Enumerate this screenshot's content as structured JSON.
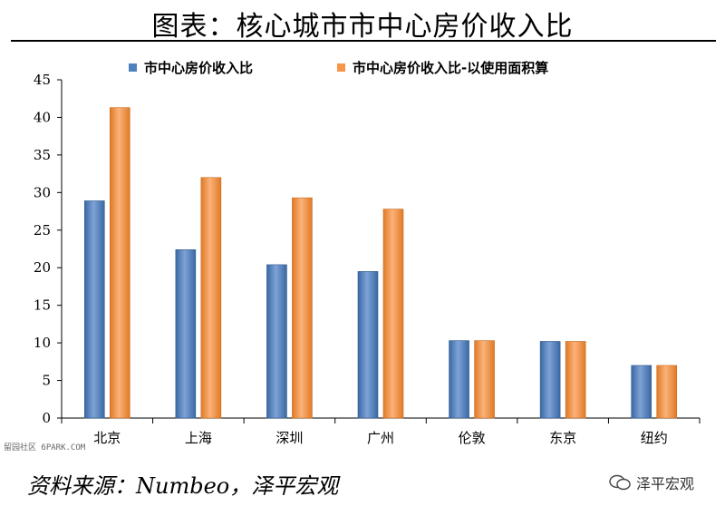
{
  "title": "图表：核心城市市中心房价收入比",
  "source": "资料来源：Numbeo，泽平宏观",
  "watermark_left": "留园社区 6PARK.COM",
  "watermark_right": "泽平宏观",
  "colors": {
    "series1": "#4f81bd",
    "series2": "#f79646"
  },
  "chart_data": {
    "type": "bar",
    "categories": [
      "北京",
      "上海",
      "深圳",
      "广州",
      "伦敦",
      "东京",
      "纽约"
    ],
    "series": [
      {
        "name": "市中心房价收入比",
        "values": [
          28.9,
          22.4,
          20.4,
          19.5,
          10.3,
          10.2,
          7.0
        ]
      },
      {
        "name": "市中心房价收入比-以使用面积算",
        "values": [
          41.3,
          32.0,
          29.3,
          27.8,
          10.3,
          10.2,
          7.0
        ]
      }
    ],
    "yticks": [
      "0",
      "5",
      "10",
      "15",
      "20",
      "25",
      "30",
      "35",
      "40",
      "45"
    ],
    "ylim": [
      0,
      45
    ],
    "grid": false,
    "legend_position": "top"
  }
}
